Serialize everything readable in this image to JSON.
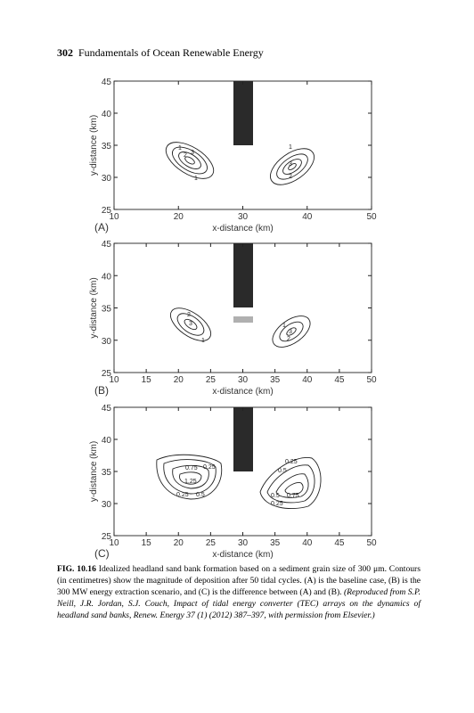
{
  "header": {
    "page_number": "302",
    "running_title": "Fundamentals of Ocean Renewable Energy"
  },
  "chart_data": [
    {
      "type": "contour",
      "panel_label": "(A)",
      "xlabel": "x-distance (km)",
      "ylabel": "y-distance (km)",
      "xlim": [
        10,
        50
      ],
      "ylim": [
        25,
        45
      ],
      "xticks": [
        10,
        20,
        30,
        40,
        50
      ],
      "yticks": [
        25,
        30,
        35,
        40,
        45
      ],
      "contour_labels": [
        1,
        2,
        3,
        1,
        1,
        3,
        2
      ]
    },
    {
      "type": "contour",
      "panel_label": "(B)",
      "xlabel": "x-distance (km)",
      "ylabel": "y-distance (km)",
      "xlim": [
        10,
        50
      ],
      "ylim": [
        25,
        45
      ],
      "xticks": [
        10,
        15,
        20,
        25,
        30,
        35,
        40,
        45,
        50
      ],
      "yticks": [
        25,
        30,
        35,
        40,
        45
      ],
      "contour_labels": [
        2,
        3,
        1,
        1,
        3,
        2
      ]
    },
    {
      "type": "contour",
      "panel_label": "(C)",
      "xlabel": "x-distance (km)",
      "ylabel": "y-distance (km)",
      "xlim": [
        10,
        50
      ],
      "ylim": [
        25,
        45
      ],
      "xticks": [
        10,
        15,
        20,
        25,
        30,
        35,
        40,
        45,
        50
      ],
      "yticks": [
        25,
        30,
        35,
        40,
        45
      ],
      "contour_labels": [
        0.75,
        0.25,
        1.25,
        0.25,
        0.5,
        0.25,
        0.5,
        0.5,
        0.75,
        0.25
      ]
    }
  ],
  "caption": {
    "label": "FIG. 10.16",
    "text": "Idealized headland sand bank formation based on a sediment grain size of 300 μm. Contours (in centimetres) show the magnitude of deposition after 50 tidal cycles. (A) is the baseline case, (B) is the 300 MW energy extraction scenario, and (C) is the difference between (A) and (B).",
    "credit": "(Reproduced from S.P. Neill, J.R. Jordan, S.J. Couch, Impact of tidal energy converter (TEC) arrays on the dynamics of headland sand banks, Renew. Energy 37 (1) (2012) 387–397, with permission from Elsevier.)"
  }
}
